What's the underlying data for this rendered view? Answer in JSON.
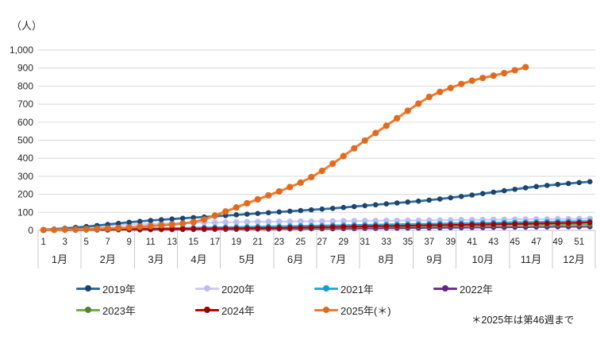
{
  "chart_data": {
    "type": "line",
    "title": "",
    "unit_label": "（人）",
    "xlabel": "",
    "ylabel": "（人）",
    "grid": true,
    "legend_position": "bottom",
    "y_axis": {
      "min": 0,
      "max": 1000,
      "step": 100,
      "tick_labels": [
        "0",
        "100",
        "200",
        "300",
        "400",
        "500",
        "600",
        "700",
        "800",
        "900",
        "1,000"
      ]
    },
    "x_axis": {
      "unit": "week",
      "week_ticks": [
        1,
        3,
        5,
        7,
        9,
        11,
        13,
        15,
        17,
        19,
        21,
        23,
        25,
        27,
        29,
        31,
        33,
        35,
        37,
        39,
        41,
        43,
        45,
        47,
        49,
        51
      ],
      "months": [
        {
          "label": "1月",
          "weeks": 4
        },
        {
          "label": "2月",
          "weeks": 5
        },
        {
          "label": "3月",
          "weeks": 4
        },
        {
          "label": "4月",
          "weeks": 4
        },
        {
          "label": "5月",
          "weeks": 5
        },
        {
          "label": "6月",
          "weeks": 4
        },
        {
          "label": "7月",
          "weeks": 4
        },
        {
          "label": "8月",
          "weeks": 5
        },
        {
          "label": "9月",
          "weeks": 4
        },
        {
          "label": "10月",
          "weeks": 5
        },
        {
          "label": "11月",
          "weeks": 4
        },
        {
          "label": "12月",
          "weeks": 4
        }
      ]
    },
    "series": [
      {
        "name": "2019年",
        "color": "#2E6DA4",
        "marker": "#1F4468",
        "values": [
          4,
          7,
          11,
          16,
          21,
          27,
          33,
          39,
          45,
          50,
          55,
          59,
          63,
          67,
          71,
          74,
          78,
          82,
          86,
          90,
          94,
          98,
          102,
          106,
          110,
          114,
          118,
          122,
          127,
          132,
          137,
          142,
          147,
          152,
          157,
          162,
          168,
          174,
          181,
          188,
          196,
          204,
          212,
          220,
          228,
          236,
          243,
          249,
          255,
          260,
          265,
          270
        ]
      },
      {
        "name": "2020年",
        "color": "#CCCCFF",
        "marker": "#BDBDF2",
        "values": [
          3,
          6,
          10,
          14,
          18,
          22,
          26,
          29,
          32,
          34,
          36,
          38,
          40,
          41,
          42,
          43,
          44,
          45,
          46,
          47,
          48,
          48,
          49,
          49,
          50,
          50,
          51,
          51,
          52,
          52,
          53,
          53,
          54,
          54,
          55,
          55,
          56,
          56,
          57,
          58,
          58,
          59,
          60,
          60,
          61,
          61,
          62,
          62,
          63,
          63,
          64,
          65
        ]
      },
      {
        "name": "2021年",
        "color": "#29ABE2",
        "marker": "#0E9ED9",
        "values": [
          1,
          2,
          3,
          4,
          5,
          6,
          7,
          8,
          9,
          10,
          11,
          12,
          13,
          14,
          15,
          16,
          17,
          18,
          19,
          20,
          21,
          22,
          23,
          24,
          25,
          26,
          27,
          28,
          29,
          30,
          31,
          32,
          33,
          34,
          35,
          36,
          37,
          38,
          39,
          40,
          41,
          42,
          43,
          44,
          45,
          46,
          47,
          48,
          49,
          50,
          51,
          52
        ]
      },
      {
        "name": "2022年",
        "color": "#7030A0",
        "marker": "#5E2787",
        "values": [
          0,
          1,
          1,
          1,
          2,
          2,
          2,
          3,
          3,
          3,
          4,
          4,
          4,
          5,
          5,
          5,
          6,
          6,
          6,
          7,
          7,
          7,
          8,
          8,
          8,
          9,
          9,
          9,
          10,
          10,
          11,
          11,
          12,
          12,
          13,
          13,
          14,
          14,
          15,
          15,
          16,
          16,
          17,
          17,
          18,
          18,
          19,
          19,
          20,
          20,
          20,
          20
        ]
      },
      {
        "name": "2023年",
        "color": "#70AD47",
        "marker": "#548235",
        "values": [
          1,
          1,
          2,
          2,
          3,
          3,
          4,
          4,
          5,
          5,
          6,
          6,
          7,
          8,
          8,
          9,
          9,
          10,
          10,
          11,
          12,
          12,
          13,
          13,
          14,
          15,
          15,
          16,
          17,
          17,
          18,
          19,
          20,
          21,
          22,
          23,
          24,
          24,
          25,
          26,
          27,
          27,
          28,
          29,
          29,
          30,
          30,
          31,
          31,
          32,
          32,
          32
        ]
      },
      {
        "name": "2024年",
        "color": "#C00000",
        "marker": "#A00000",
        "values": [
          2,
          3,
          3,
          4,
          4,
          5,
          5,
          6,
          6,
          7,
          7,
          8,
          8,
          9,
          9,
          10,
          10,
          11,
          11,
          12,
          13,
          13,
          14,
          15,
          16,
          17,
          18,
          19,
          20,
          21,
          22,
          23,
          24,
          25,
          26,
          27,
          28,
          29,
          30,
          31,
          32,
          33,
          34,
          35,
          36,
          37,
          38,
          39,
          40,
          41,
          42,
          44
        ]
      },
      {
        "name": "2025年(＊)",
        "color": "#ED7D31",
        "marker": "#E06B1F",
        "values": [
          2,
          3,
          4,
          5,
          7,
          9,
          11,
          13,
          16,
          20,
          24,
          28,
          32,
          38,
          46,
          60,
          82,
          105,
          127,
          150,
          172,
          194,
          216,
          240,
          265,
          295,
          330,
          370,
          412,
          455,
          498,
          540,
          580,
          622,
          663,
          703,
          740,
          768,
          790,
          812,
          830,
          845,
          858,
          872,
          888,
          905
        ]
      }
    ],
    "footnote": "＊2025年は第46週まで"
  }
}
